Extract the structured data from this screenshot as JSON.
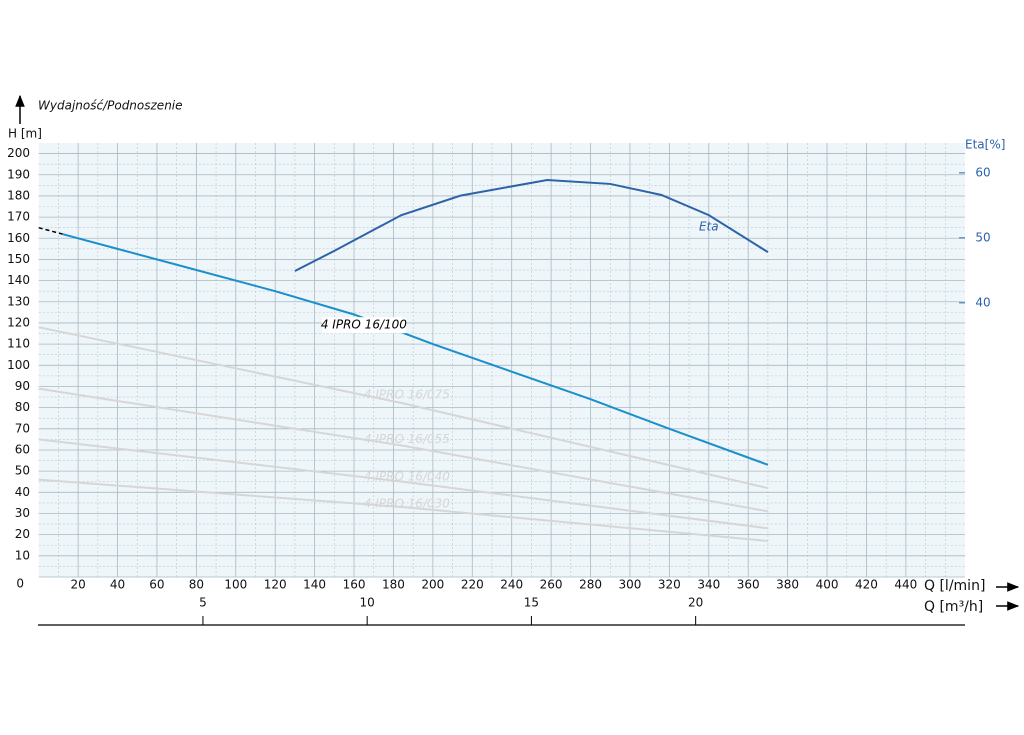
{
  "chart_data": {
    "type": "line",
    "title": "Wydajność/Podnoszenie",
    "y_label": "H [m]",
    "y2_label": "Eta[%]",
    "x_label": "Q [l/min]",
    "x2_label": "Q [m³/h]",
    "xlim": [
      0,
      470
    ],
    "xticks": [
      20,
      40,
      60,
      80,
      100,
      120,
      140,
      160,
      180,
      200,
      220,
      240,
      260,
      280,
      300,
      320,
      340,
      360,
      380,
      400,
      420,
      440
    ],
    "x2lim": [
      0,
      28.2
    ],
    "x2ticks": [
      5,
      10,
      15,
      20
    ],
    "ylim": [
      0,
      205
    ],
    "yticks": [
      0,
      10,
      20,
      30,
      40,
      50,
      60,
      70,
      80,
      90,
      100,
      110,
      120,
      130,
      140,
      150,
      160,
      170,
      180,
      190,
      200
    ],
    "y2lim": [
      -2.2,
      64.6
    ],
    "y2ticks": [
      40,
      50,
      60
    ],
    "grid": true,
    "series": [
      {
        "name": "4 IPRO 16/100",
        "color": "#1b8fcc",
        "x": [
          12,
          40,
          80,
          120,
          160,
          200,
          240,
          280,
          320,
          370
        ],
        "values": [
          162,
          155,
          145,
          135,
          124,
          110,
          97,
          84,
          70,
          53
        ]
      },
      {
        "color": "#000000",
        "style": "dashed",
        "x": [
          0,
          12
        ],
        "values": [
          165,
          162
        ]
      },
      {
        "name": "4 IPRO 16/075",
        "color": "#d6d6d6",
        "x": [
          0,
          185,
          370
        ],
        "values": [
          118,
          82,
          42
        ]
      },
      {
        "name": "4 IPRO 16/055",
        "color": "#d6d6d6",
        "x": [
          0,
          185,
          370
        ],
        "values": [
          89,
          62,
          31
        ]
      },
      {
        "name": "4 IPRO 16/040",
        "color": "#d6d6d6",
        "x": [
          0,
          185,
          370
        ],
        "values": [
          65,
          45,
          23
        ]
      },
      {
        "name": "4 IPRO 16/030",
        "color": "#d6d6d6",
        "x": [
          0,
          185,
          370
        ],
        "values": [
          46,
          33,
          17
        ]
      },
      {
        "name": "Eta",
        "color": "#2d63a8",
        "axis": "y2",
        "x": [
          130,
          150,
          184,
          214,
          258,
          290,
          316,
          340,
          370
        ],
        "values": [
          44.9,
          48,
          53.5,
          56.5,
          58.9,
          58.3,
          56.6,
          53.5,
          47.8
        ]
      }
    ]
  }
}
